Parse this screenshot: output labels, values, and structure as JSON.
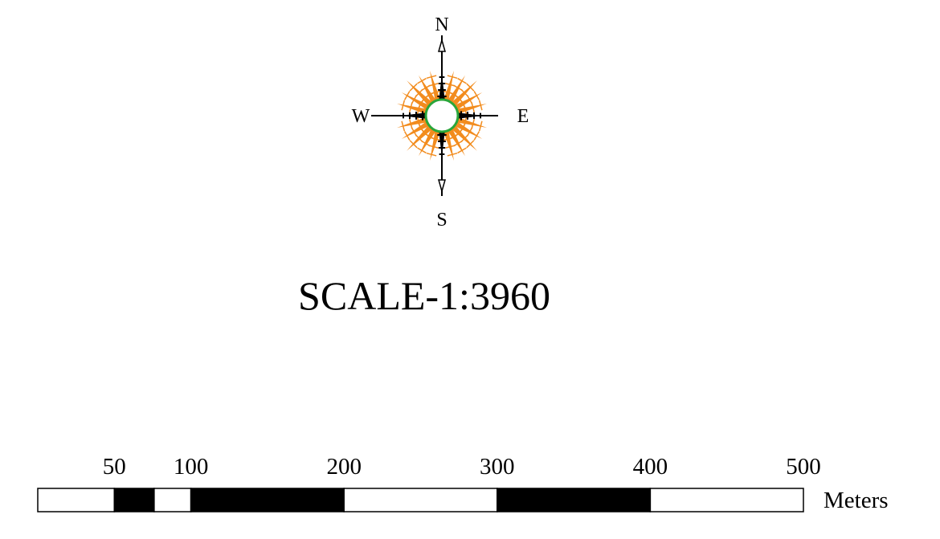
{
  "compass": {
    "north_label": "N",
    "south_label": "S",
    "east_label": "E",
    "west_label": "W",
    "ray_color": "#f28c1e",
    "arm_color": "#000000",
    "ring_color": "#2aa63a",
    "center_icon": "compass-rose-icon"
  },
  "scale": {
    "title": "SCALE-1:3960",
    "unit": "Meters",
    "ticks": [
      {
        "value": 50,
        "label": "50"
      },
      {
        "value": 100,
        "label": "100"
      },
      {
        "value": 200,
        "label": "200"
      },
      {
        "value": 300,
        "label": "300"
      },
      {
        "value": 400,
        "label": "400"
      },
      {
        "value": 500,
        "label": "500"
      }
    ],
    "segments": [
      {
        "from": 0,
        "to": 50,
        "fill": "#ffffff"
      },
      {
        "from": 50,
        "to": 76,
        "fill": "#000000"
      },
      {
        "from": 76,
        "to": 100,
        "fill": "#ffffff"
      },
      {
        "from": 100,
        "to": 200,
        "fill": "#000000"
      },
      {
        "from": 200,
        "to": 300,
        "fill": "#ffffff"
      },
      {
        "from": 300,
        "to": 400,
        "fill": "#000000"
      },
      {
        "from": 400,
        "to": 500,
        "fill": "#ffffff"
      }
    ],
    "max": 500
  }
}
